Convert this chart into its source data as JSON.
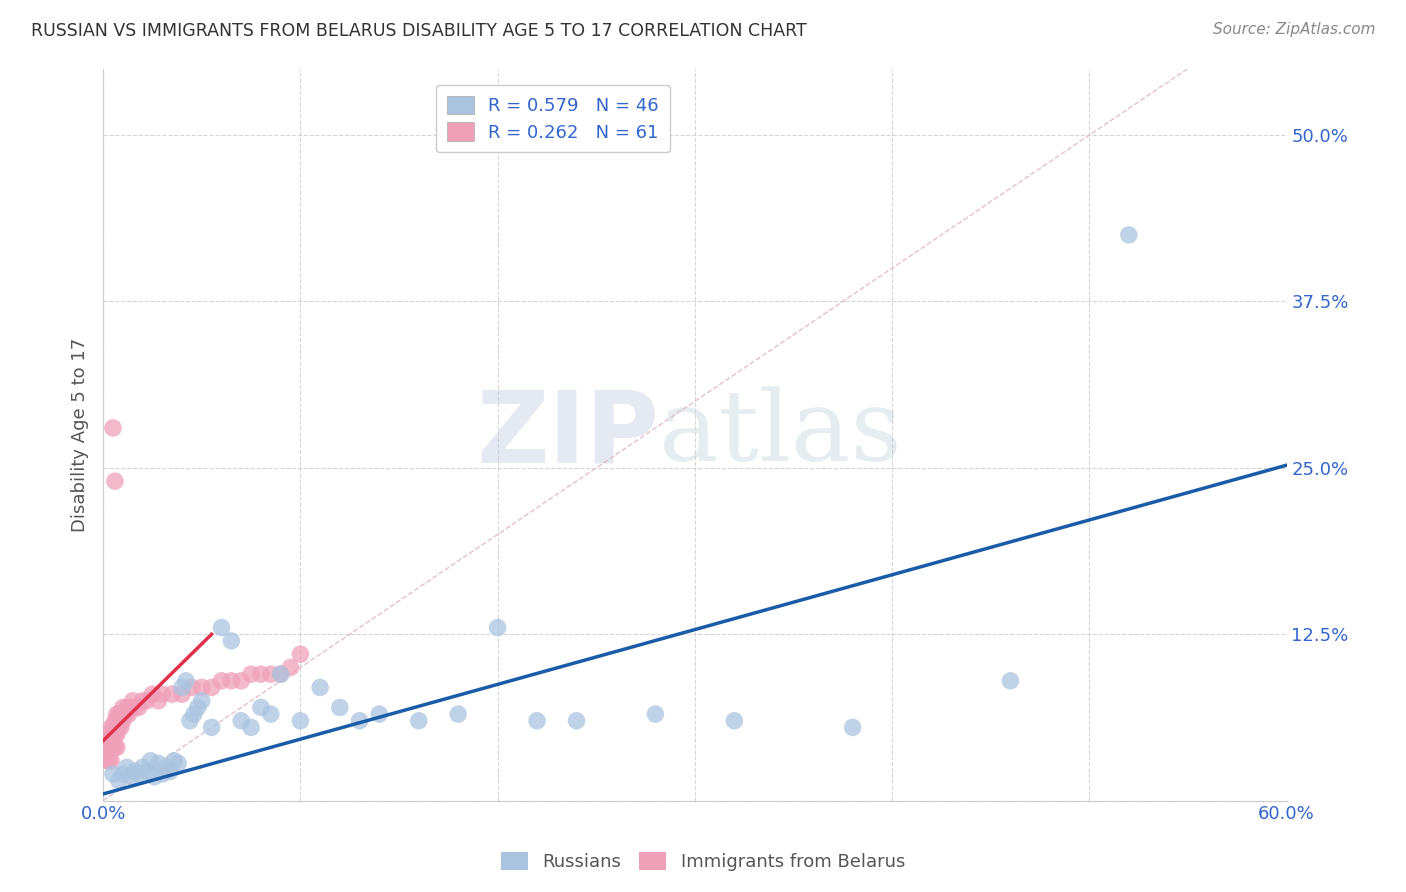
{
  "title": "RUSSIAN VS IMMIGRANTS FROM BELARUS DISABILITY AGE 5 TO 17 CORRELATION CHART",
  "source": "Source: ZipAtlas.com",
  "ylabel": "Disability Age 5 to 17",
  "xlabel": "",
  "xlim": [
    0.0,
    0.6
  ],
  "ylim": [
    0.0,
    0.55
  ],
  "ytick_positions": [
    0.0,
    0.125,
    0.25,
    0.375,
    0.5
  ],
  "ytick_labels": [
    "",
    "12.5%",
    "25.0%",
    "37.5%",
    "50.0%"
  ],
  "legend_r1": "R = 0.579",
  "legend_n1": "N = 46",
  "legend_r2": "R = 0.262",
  "legend_n2": "N = 61",
  "color_russian": "#aac4e0",
  "color_belarus": "#f0a0b8",
  "color_line_russian": "#1a5ca8",
  "color_line_belarus": "#e0304a",
  "color_diag": "#e0b0c0",
  "color_text": "#3366cc",
  "russians_x": [
    0.005,
    0.008,
    0.01,
    0.012,
    0.014,
    0.016,
    0.018,
    0.02,
    0.022,
    0.024,
    0.026,
    0.028,
    0.03,
    0.032,
    0.034,
    0.036,
    0.038,
    0.04,
    0.042,
    0.044,
    0.046,
    0.048,
    0.05,
    0.055,
    0.06,
    0.065,
    0.07,
    0.075,
    0.08,
    0.085,
    0.09,
    0.1,
    0.11,
    0.12,
    0.13,
    0.14,
    0.16,
    0.18,
    0.2,
    0.22,
    0.24,
    0.28,
    0.32,
    0.38,
    0.46,
    0.52
  ],
  "russians_y": [
    0.02,
    0.015,
    0.02,
    0.025,
    0.018,
    0.022,
    0.02,
    0.025,
    0.022,
    0.03,
    0.018,
    0.028,
    0.02,
    0.025,
    0.022,
    0.03,
    0.028,
    0.085,
    0.09,
    0.06,
    0.065,
    0.07,
    0.075,
    0.055,
    0.13,
    0.12,
    0.06,
    0.055,
    0.07,
    0.065,
    0.095,
    0.06,
    0.085,
    0.07,
    0.06,
    0.065,
    0.06,
    0.065,
    0.13,
    0.06,
    0.06,
    0.065,
    0.06,
    0.055,
    0.09,
    0.425
  ],
  "belarus_x": [
    0.002,
    0.002,
    0.002,
    0.003,
    0.003,
    0.003,
    0.003,
    0.004,
    0.004,
    0.004,
    0.004,
    0.004,
    0.005,
    0.005,
    0.005,
    0.005,
    0.006,
    0.006,
    0.006,
    0.006,
    0.006,
    0.007,
    0.007,
    0.007,
    0.007,
    0.008,
    0.008,
    0.008,
    0.009,
    0.009,
    0.009,
    0.01,
    0.01,
    0.01,
    0.011,
    0.012,
    0.012,
    0.013,
    0.014,
    0.015,
    0.016,
    0.018,
    0.02,
    0.022,
    0.025,
    0.028,
    0.03,
    0.035,
    0.04,
    0.045,
    0.05,
    0.055,
    0.06,
    0.065,
    0.07,
    0.075,
    0.08,
    0.085,
    0.09,
    0.095,
    0.1
  ],
  "belarus_y": [
    0.03,
    0.035,
    0.04,
    0.03,
    0.035,
    0.04,
    0.045,
    0.03,
    0.04,
    0.045,
    0.05,
    0.055,
    0.04,
    0.05,
    0.055,
    0.28,
    0.04,
    0.05,
    0.055,
    0.06,
    0.24,
    0.04,
    0.05,
    0.06,
    0.065,
    0.055,
    0.06,
    0.065,
    0.055,
    0.06,
    0.065,
    0.06,
    0.065,
    0.07,
    0.065,
    0.065,
    0.07,
    0.065,
    0.07,
    0.075,
    0.07,
    0.07,
    0.075,
    0.075,
    0.08,
    0.075,
    0.08,
    0.08,
    0.08,
    0.085,
    0.085,
    0.085,
    0.09,
    0.09,
    0.09,
    0.095,
    0.095,
    0.095,
    0.095,
    0.1,
    0.11
  ],
  "watermark_zip": "ZIP",
  "watermark_atlas": "atlas",
  "background_color": "#ffffff",
  "grid_color": "#cccccc",
  "blue_line_x0": 0.0,
  "blue_line_y0": 0.005,
  "blue_line_x1": 0.6,
  "blue_line_y1": 0.252,
  "red_line_x0": 0.0,
  "red_line_y0": 0.045,
  "red_line_x1": 0.055,
  "red_line_y1": 0.125
}
